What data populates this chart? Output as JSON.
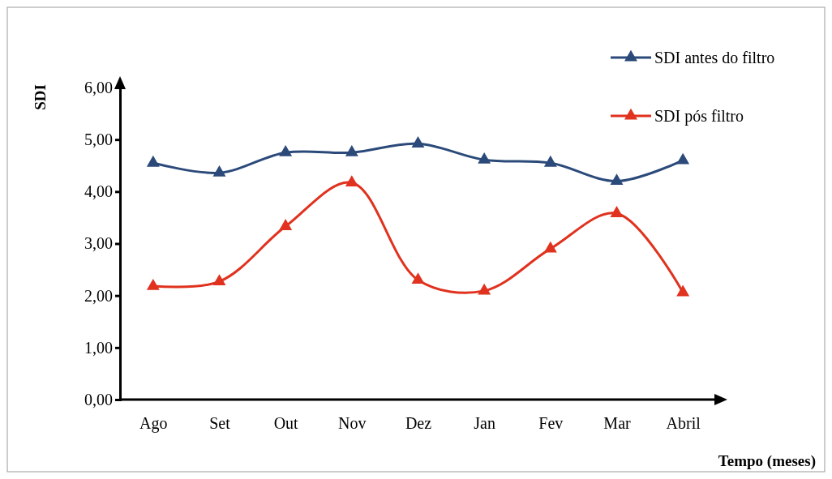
{
  "chart_data": {
    "type": "line",
    "xlabel": "Tempo (meses)",
    "ylabel": "SDI",
    "categories": [
      "Ago",
      "Set",
      "Out",
      "Nov",
      "Dez",
      "Jan",
      "Fev",
      "Mar",
      "Abril"
    ],
    "series": [
      {
        "name": "SDI antes do filtro",
        "color": "#2b4a7a",
        "values": [
          4.55,
          4.36,
          4.75,
          4.75,
          4.92,
          4.61,
          4.55,
          4.2,
          4.6
        ]
      },
      {
        "name": "SDI pós filtro",
        "color": "#e0321e",
        "values": [
          2.18,
          2.27,
          3.33,
          4.17,
          2.3,
          2.09,
          2.9,
          3.58,
          2.06
        ]
      }
    ],
    "ylim": [
      0,
      6
    ],
    "yticks": [
      {
        "value": 0,
        "label": "0,00"
      },
      {
        "value": 1,
        "label": "1,00"
      },
      {
        "value": 2,
        "label": "2,00"
      },
      {
        "value": 3,
        "label": "3,00"
      },
      {
        "value": 4,
        "label": "4,00"
      },
      {
        "value": 5,
        "label": "5,00"
      },
      {
        "value": 6,
        "label": "6,00"
      }
    ],
    "grid": false,
    "legend": "top right",
    "marker": "triangle",
    "line_style": "solid"
  }
}
